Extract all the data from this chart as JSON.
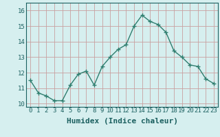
{
  "x": [
    0,
    1,
    2,
    3,
    4,
    5,
    6,
    7,
    8,
    9,
    10,
    11,
    12,
    13,
    14,
    15,
    16,
    17,
    18,
    19,
    20,
    21,
    22,
    23
  ],
  "y": [
    11.5,
    10.7,
    10.5,
    10.2,
    10.2,
    11.2,
    11.9,
    12.1,
    11.2,
    12.4,
    13.0,
    13.5,
    13.8,
    15.0,
    15.7,
    15.3,
    15.1,
    14.6,
    13.4,
    13.0,
    12.5,
    12.4,
    11.6,
    11.3
  ],
  "line_color": "#2e7d6e",
  "marker": "+",
  "markersize": 4,
  "linewidth": 1.0,
  "bg_color": "#d6efef",
  "grid_color": "#c8a0a0",
  "xlabel": "Humidex (Indice chaleur)",
  "xlabel_fontsize": 8,
  "xlim": [
    -0.5,
    23.5
  ],
  "ylim": [
    9.8,
    16.5
  ],
  "yticks": [
    10,
    11,
    12,
    13,
    14,
    15,
    16
  ],
  "xticks": [
    0,
    1,
    2,
    3,
    4,
    5,
    6,
    7,
    8,
    9,
    10,
    11,
    12,
    13,
    14,
    15,
    16,
    17,
    18,
    19,
    20,
    21,
    22,
    23
  ],
  "tick_fontsize": 6.5,
  "tick_color": "#1a5f5f",
  "spine_color": "#1a5f5f"
}
